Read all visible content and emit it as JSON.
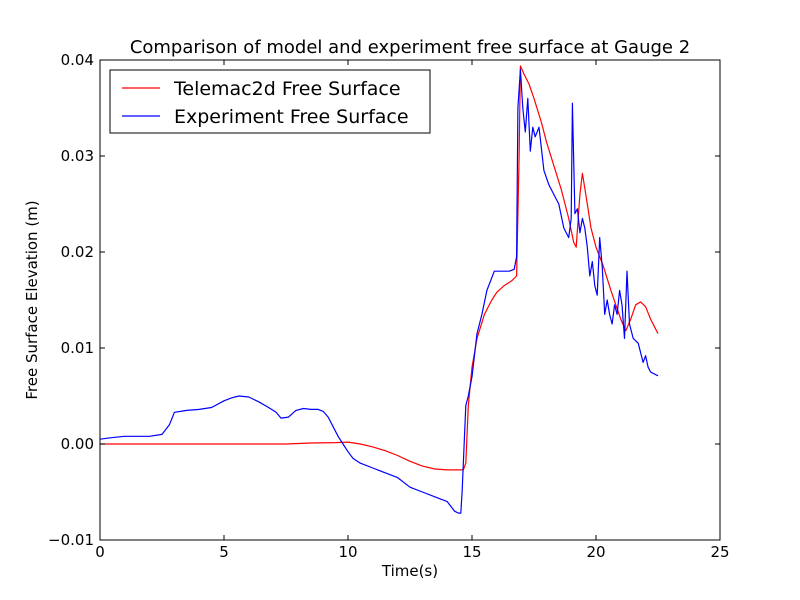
{
  "chart_data": {
    "type": "line",
    "title": "Comparison of model and experiment free surface at Gauge 2",
    "xlabel": "Time(s)",
    "ylabel": "Free Surface Elevation (m)",
    "xlim": [
      0,
      25
    ],
    "ylim": [
      -0.01,
      0.04
    ],
    "xticks": [
      0,
      5,
      10,
      15,
      20,
      25
    ],
    "xtick_labels": [
      "0",
      "5",
      "10",
      "15",
      "20",
      "25"
    ],
    "yticks": [
      -0.01,
      0.0,
      0.01,
      0.02,
      0.03,
      0.04
    ],
    "ytick_labels": [
      "−0.01",
      "0.00",
      "0.01",
      "0.02",
      "0.03",
      "0.04"
    ],
    "grid": false,
    "legend_position": "top-left",
    "series": [
      {
        "name": "Telemac2d Free Surface",
        "color": "#ff0000",
        "x": [
          0,
          2,
          4,
          6,
          7.5,
          8.5,
          9.5,
          10,
          10.5,
          11,
          11.5,
          12,
          12.5,
          13,
          13.5,
          14,
          14.5,
          14.65,
          14.75,
          14.85,
          15,
          15.2,
          15.5,
          15.8,
          16,
          16.3,
          16.6,
          16.8,
          16.9,
          16.95,
          17.1,
          17.3,
          17.5,
          17.8,
          18,
          18.3,
          18.6,
          18.9,
          19.1,
          19.2,
          19.35,
          19.45,
          19.6,
          19.8,
          20,
          20.3,
          20.6,
          20.8,
          21,
          21.2,
          21.4,
          21.6,
          21.8,
          22,
          22.2,
          22.5
        ],
        "values": [
          0.0,
          0.0,
          0.0,
          0.0,
          0.0,
          0.0001,
          0.00015,
          0.0002,
          0.0,
          -0.0003,
          -0.0007,
          -0.0012,
          -0.0018,
          -0.0023,
          -0.0026,
          -0.0027,
          -0.0027,
          -0.0027,
          -0.002,
          0.004,
          0.008,
          0.011,
          0.0135,
          0.015,
          0.0158,
          0.0165,
          0.017,
          0.0175,
          0.03,
          0.0394,
          0.0385,
          0.0375,
          0.036,
          0.0335,
          0.0315,
          0.029,
          0.0265,
          0.0235,
          0.021,
          0.0205,
          0.026,
          0.0282,
          0.0258,
          0.0225,
          0.0205,
          0.0185,
          0.016,
          0.0145,
          0.013,
          0.0118,
          0.013,
          0.0145,
          0.0148,
          0.0143,
          0.013,
          0.0115
        ]
      },
      {
        "name": "Experiment Free Surface",
        "color": "#0000ff",
        "x": [
          0,
          0.3,
          0.6,
          1.0,
          1.5,
          2.0,
          2.5,
          2.8,
          3.0,
          3.5,
          4.0,
          4.5,
          5.0,
          5.3,
          5.6,
          6.0,
          6.4,
          6.8,
          7.1,
          7.3,
          7.6,
          7.9,
          8.2,
          8.5,
          8.8,
          9.0,
          9.2,
          9.4,
          9.6,
          9.8,
          10.0,
          10.2,
          10.5,
          11.0,
          11.5,
          12.0,
          12.5,
          13.0,
          13.5,
          14.0,
          14.3,
          14.45,
          14.55,
          14.6,
          14.75,
          14.85,
          15.0,
          15.2,
          15.4,
          15.6,
          15.9,
          16.2,
          16.5,
          16.7,
          16.8,
          16.85,
          16.95,
          17.05,
          17.15,
          17.25,
          17.35,
          17.45,
          17.55,
          17.7,
          17.9,
          18.1,
          18.3,
          18.5,
          18.7,
          18.9,
          19.0,
          19.05,
          19.15,
          19.25,
          19.35,
          19.45,
          19.55,
          19.65,
          19.75,
          19.85,
          19.95,
          20.05,
          20.15,
          20.25,
          20.35,
          20.45,
          20.55,
          20.65,
          20.75,
          20.85,
          20.95,
          21.05,
          21.15,
          21.25,
          21.35,
          21.5,
          21.7,
          21.9,
          22.0,
          22.1,
          22.2,
          22.5
        ],
        "values": [
          0.0005,
          0.0006,
          0.0007,
          0.0008,
          0.0008,
          0.0008,
          0.001,
          0.002,
          0.0033,
          0.0035,
          0.0036,
          0.0038,
          0.0045,
          0.0048,
          0.005,
          0.0049,
          0.0044,
          0.0038,
          0.0033,
          0.0027,
          0.0028,
          0.0035,
          0.0037,
          0.0036,
          0.0036,
          0.0034,
          0.0028,
          0.0018,
          0.0008,
          0.0,
          -0.0008,
          -0.0015,
          -0.002,
          -0.0025,
          -0.003,
          -0.0035,
          -0.0045,
          -0.005,
          -0.0055,
          -0.006,
          -0.007,
          -0.0072,
          -0.0072,
          -0.005,
          0.004,
          0.005,
          0.007,
          0.0115,
          0.0135,
          0.016,
          0.018,
          0.018,
          0.018,
          0.0182,
          0.0195,
          0.035,
          0.039,
          0.035,
          0.0325,
          0.036,
          0.0305,
          0.033,
          0.032,
          0.033,
          0.0285,
          0.027,
          0.026,
          0.025,
          0.0225,
          0.0215,
          0.0235,
          0.0355,
          0.024,
          0.0245,
          0.022,
          0.0235,
          0.0225,
          0.0205,
          0.0175,
          0.019,
          0.0165,
          0.0155,
          0.0215,
          0.0185,
          0.0135,
          0.015,
          0.0135,
          0.0125,
          0.0145,
          0.0135,
          0.016,
          0.0145,
          0.011,
          0.018,
          0.0125,
          0.011,
          0.0105,
          0.0085,
          0.0092,
          0.008,
          0.0075,
          0.0071
        ]
      }
    ]
  }
}
